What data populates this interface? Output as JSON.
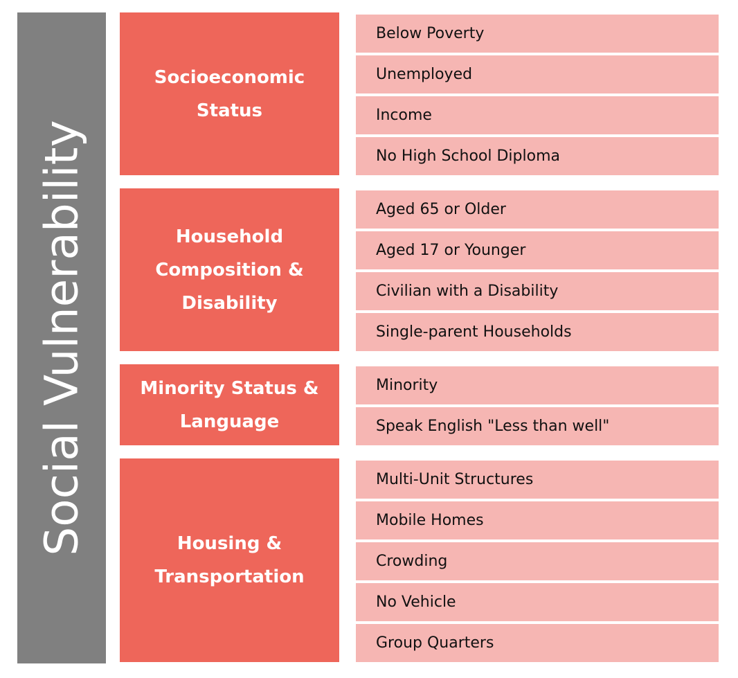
{
  "title": "Social Vulnerability",
  "themes": [
    {
      "label_lines": [
        "Socioeconomic",
        "Status"
      ],
      "variables": [
        "Below Poverty",
        "Unemployed",
        "Income",
        "No High School Diploma"
      ]
    },
    {
      "label_lines": [
        "Household",
        "Composition &",
        "Disability"
      ],
      "variables": [
        "Aged 65 or Older",
        "Aged 17 or Younger",
        "Civilian with a Disability",
        "Single-parent Households"
      ]
    },
    {
      "label_lines": [
        "Minority Status &",
        "Language"
      ],
      "variables": [
        "Minority",
        "Speak English \"Less than well\""
      ]
    },
    {
      "label_lines": [
        "Housing &",
        "Transportation"
      ],
      "variables": [
        "Multi-Unit Structures",
        "Mobile Homes",
        "Crowding",
        "No Vehicle",
        "Group Quarters"
      ]
    }
  ],
  "colors": {
    "title_bar": "#808080",
    "theme_box": "#ee665a",
    "variable_box": "#f6b6b3"
  }
}
